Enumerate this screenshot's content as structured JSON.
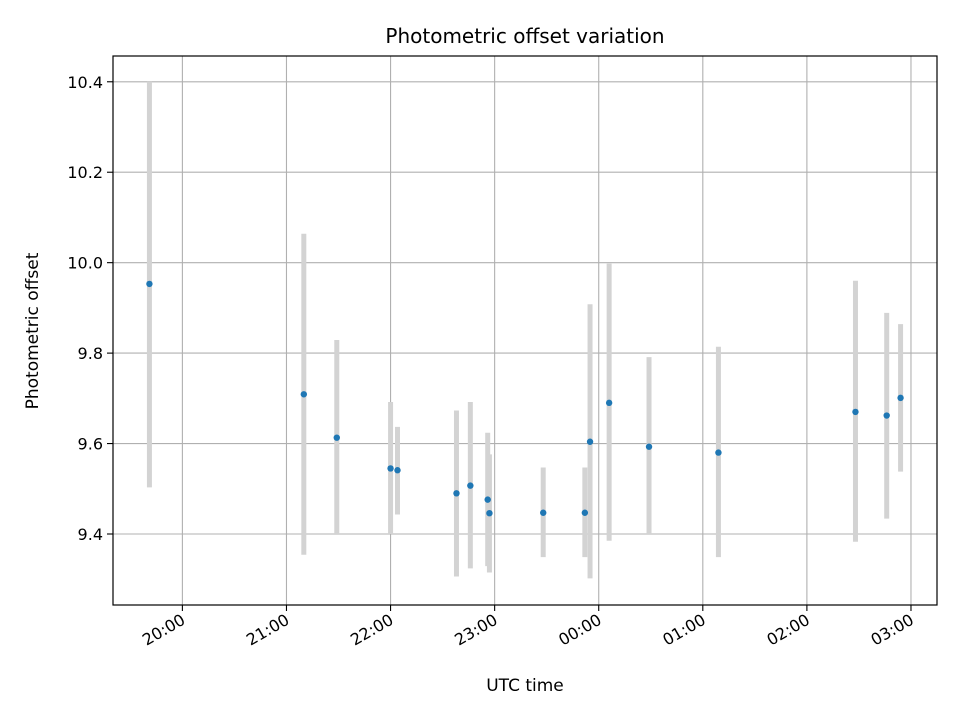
{
  "chart_data": {
    "type": "scatter",
    "title": "Photometric offset variation",
    "xlabel": "UTC time",
    "ylabel": "Photometric offset",
    "x_unit": "hours",
    "xlim": [
      "19:20",
      "03:15"
    ],
    "ylim": [
      9.243,
      10.457
    ],
    "grid": true,
    "x_ticks": [
      "20:00",
      "21:00",
      "22:00",
      "23:00",
      "00:00",
      "01:00",
      "02:00",
      "03:00"
    ],
    "y_ticks": [
      "9.4",
      "9.6",
      "9.8",
      "10.0",
      "10.2",
      "10.4"
    ],
    "y_tick_values": [
      9.4,
      9.6,
      9.8,
      10.0,
      10.2,
      10.4
    ],
    "colors": {
      "point": "#1f77b4",
      "errorbar": "#d3d3d3",
      "grid": "#b0b0b0"
    },
    "points": [
      {
        "x": "19:41",
        "y": 9.953,
        "ylow": 9.503,
        "yhigh": 10.4
      },
      {
        "x": "21:10",
        "y": 9.709,
        "ylow": 9.354,
        "yhigh": 10.064
      },
      {
        "x": "21:29",
        "y": 9.613,
        "ylow": 9.4,
        "yhigh": 9.829
      },
      {
        "x": "22:00",
        "y": 9.545,
        "ylow": 9.4,
        "yhigh": 9.692
      },
      {
        "x": "22:04",
        "y": 9.541,
        "ylow": 9.443,
        "yhigh": 9.637
      },
      {
        "x": "22:38",
        "y": 9.49,
        "ylow": 9.306,
        "yhigh": 9.673
      },
      {
        "x": "22:46",
        "y": 9.507,
        "ylow": 9.324,
        "yhigh": 9.692
      },
      {
        "x": "22:56",
        "y": 9.476,
        "ylow": 9.329,
        "yhigh": 9.624
      },
      {
        "x": "22:57",
        "y": 9.446,
        "ylow": 9.315,
        "yhigh": 9.576
      },
      {
        "x": "23:28",
        "y": 9.447,
        "ylow": 9.349,
        "yhigh": 9.547
      },
      {
        "x": "23:52",
        "y": 9.447,
        "ylow": 9.349,
        "yhigh": 9.547
      },
      {
        "x": "23:55",
        "y": 9.604,
        "ylow": 9.302,
        "yhigh": 9.908
      },
      {
        "x": "00:06",
        "y": 9.69,
        "ylow": 9.385,
        "yhigh": 9.998
      },
      {
        "x": "00:29",
        "y": 9.593,
        "ylow": 9.4,
        "yhigh": 9.791
      },
      {
        "x": "01:09",
        "y": 9.58,
        "ylow": 9.349,
        "yhigh": 9.814
      },
      {
        "x": "02:28",
        "y": 9.67,
        "ylow": 9.383,
        "yhigh": 9.96
      },
      {
        "x": "02:46",
        "y": 9.662,
        "ylow": 9.434,
        "yhigh": 9.889
      },
      {
        "x": "02:54",
        "y": 9.701,
        "ylow": 9.538,
        "yhigh": 9.864
      }
    ]
  }
}
